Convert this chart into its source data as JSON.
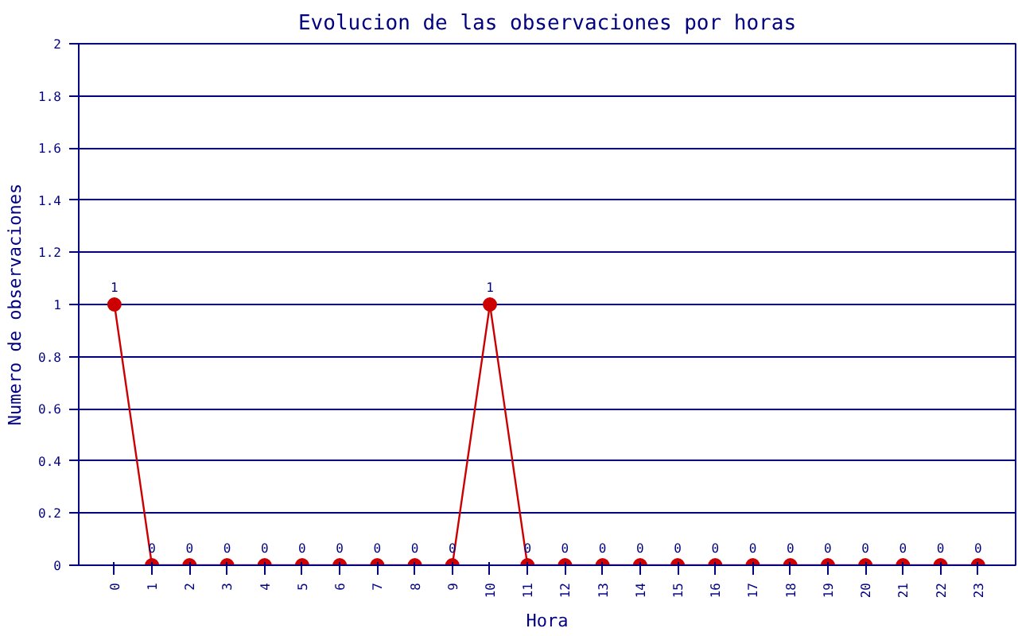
{
  "chart_data": {
    "type": "line",
    "title": "Evolucion de las observaciones por horas",
    "xlabel": "Hora",
    "ylabel": "Numero de observaciones",
    "x": [
      0,
      1,
      2,
      3,
      4,
      5,
      6,
      7,
      8,
      9,
      10,
      11,
      12,
      13,
      14,
      15,
      16,
      17,
      18,
      19,
      20,
      21,
      22,
      23
    ],
    "series": [
      {
        "color": "#cc0000",
        "values": [
          1,
          0,
          0,
          0,
          0,
          0,
          0,
          0,
          0,
          0,
          1,
          0,
          0,
          0,
          0,
          0,
          0,
          0,
          0,
          0,
          0,
          0,
          0,
          0
        ]
      }
    ],
    "xlim": [
      -0.95,
      24
    ],
    "xticks": [
      0,
      1,
      2,
      3,
      4,
      5,
      6,
      7,
      8,
      9,
      10,
      11,
      12,
      13,
      14,
      15,
      16,
      17,
      18,
      19,
      20,
      21,
      22,
      23
    ],
    "ylim": [
      0,
      2
    ],
    "yticks": [
      0,
      0.2,
      0.4,
      0.6,
      0.8,
      1,
      1.2,
      1.4,
      1.6,
      1.8,
      2
    ],
    "grid": "y",
    "marker": "circle",
    "line_style": "solid",
    "data_labels": true
  }
}
